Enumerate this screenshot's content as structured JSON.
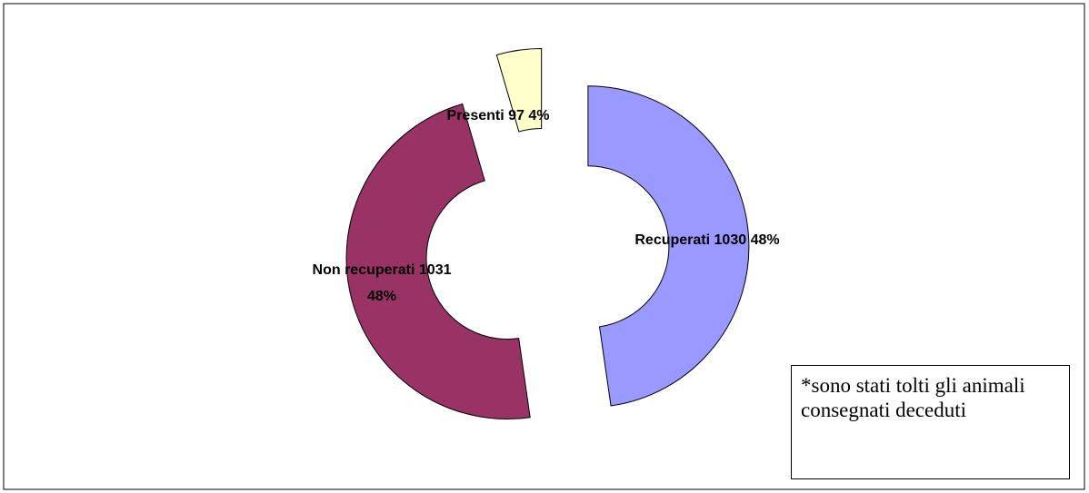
{
  "chart_data": {
    "type": "donut",
    "categories": [
      "Recuperati",
      "Non recuperati",
      "Presenti"
    ],
    "values": [
      1030,
      1031,
      97
    ],
    "percents": [
      48,
      48,
      4
    ],
    "percent_labels": [
      "48%",
      "48%",
      "4%"
    ],
    "colors": [
      "#9999ff",
      "#993366",
      "#ffffcc"
    ],
    "annotation": "*sono stati tolti gli animali consegnati deceduti"
  }
}
